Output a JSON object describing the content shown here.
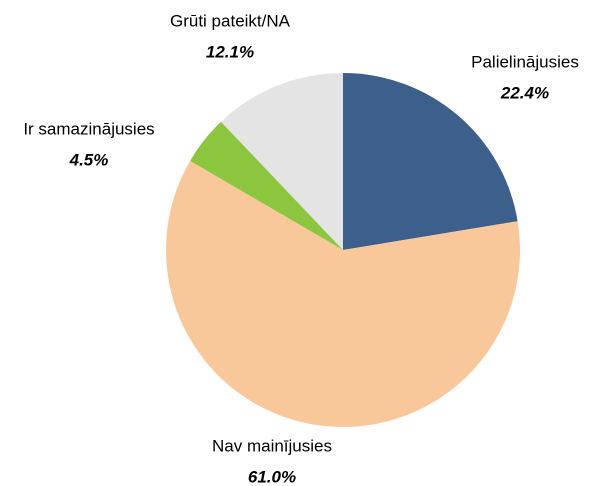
{
  "chart_data": {
    "type": "pie",
    "categories": [
      "Palielinājusies",
      "Nav mainījusies",
      "Ir samazinājusies",
      "Grūti pateikt/NA"
    ],
    "values": [
      22.4,
      61.0,
      4.5,
      12.1
    ],
    "value_labels": [
      "22.4%",
      "61.0%",
      "4.5%",
      "12.1%"
    ],
    "colors": [
      "#3d5f8c",
      "#f8c89a",
      "#8cc63f",
      "#e4e4e4"
    ]
  }
}
